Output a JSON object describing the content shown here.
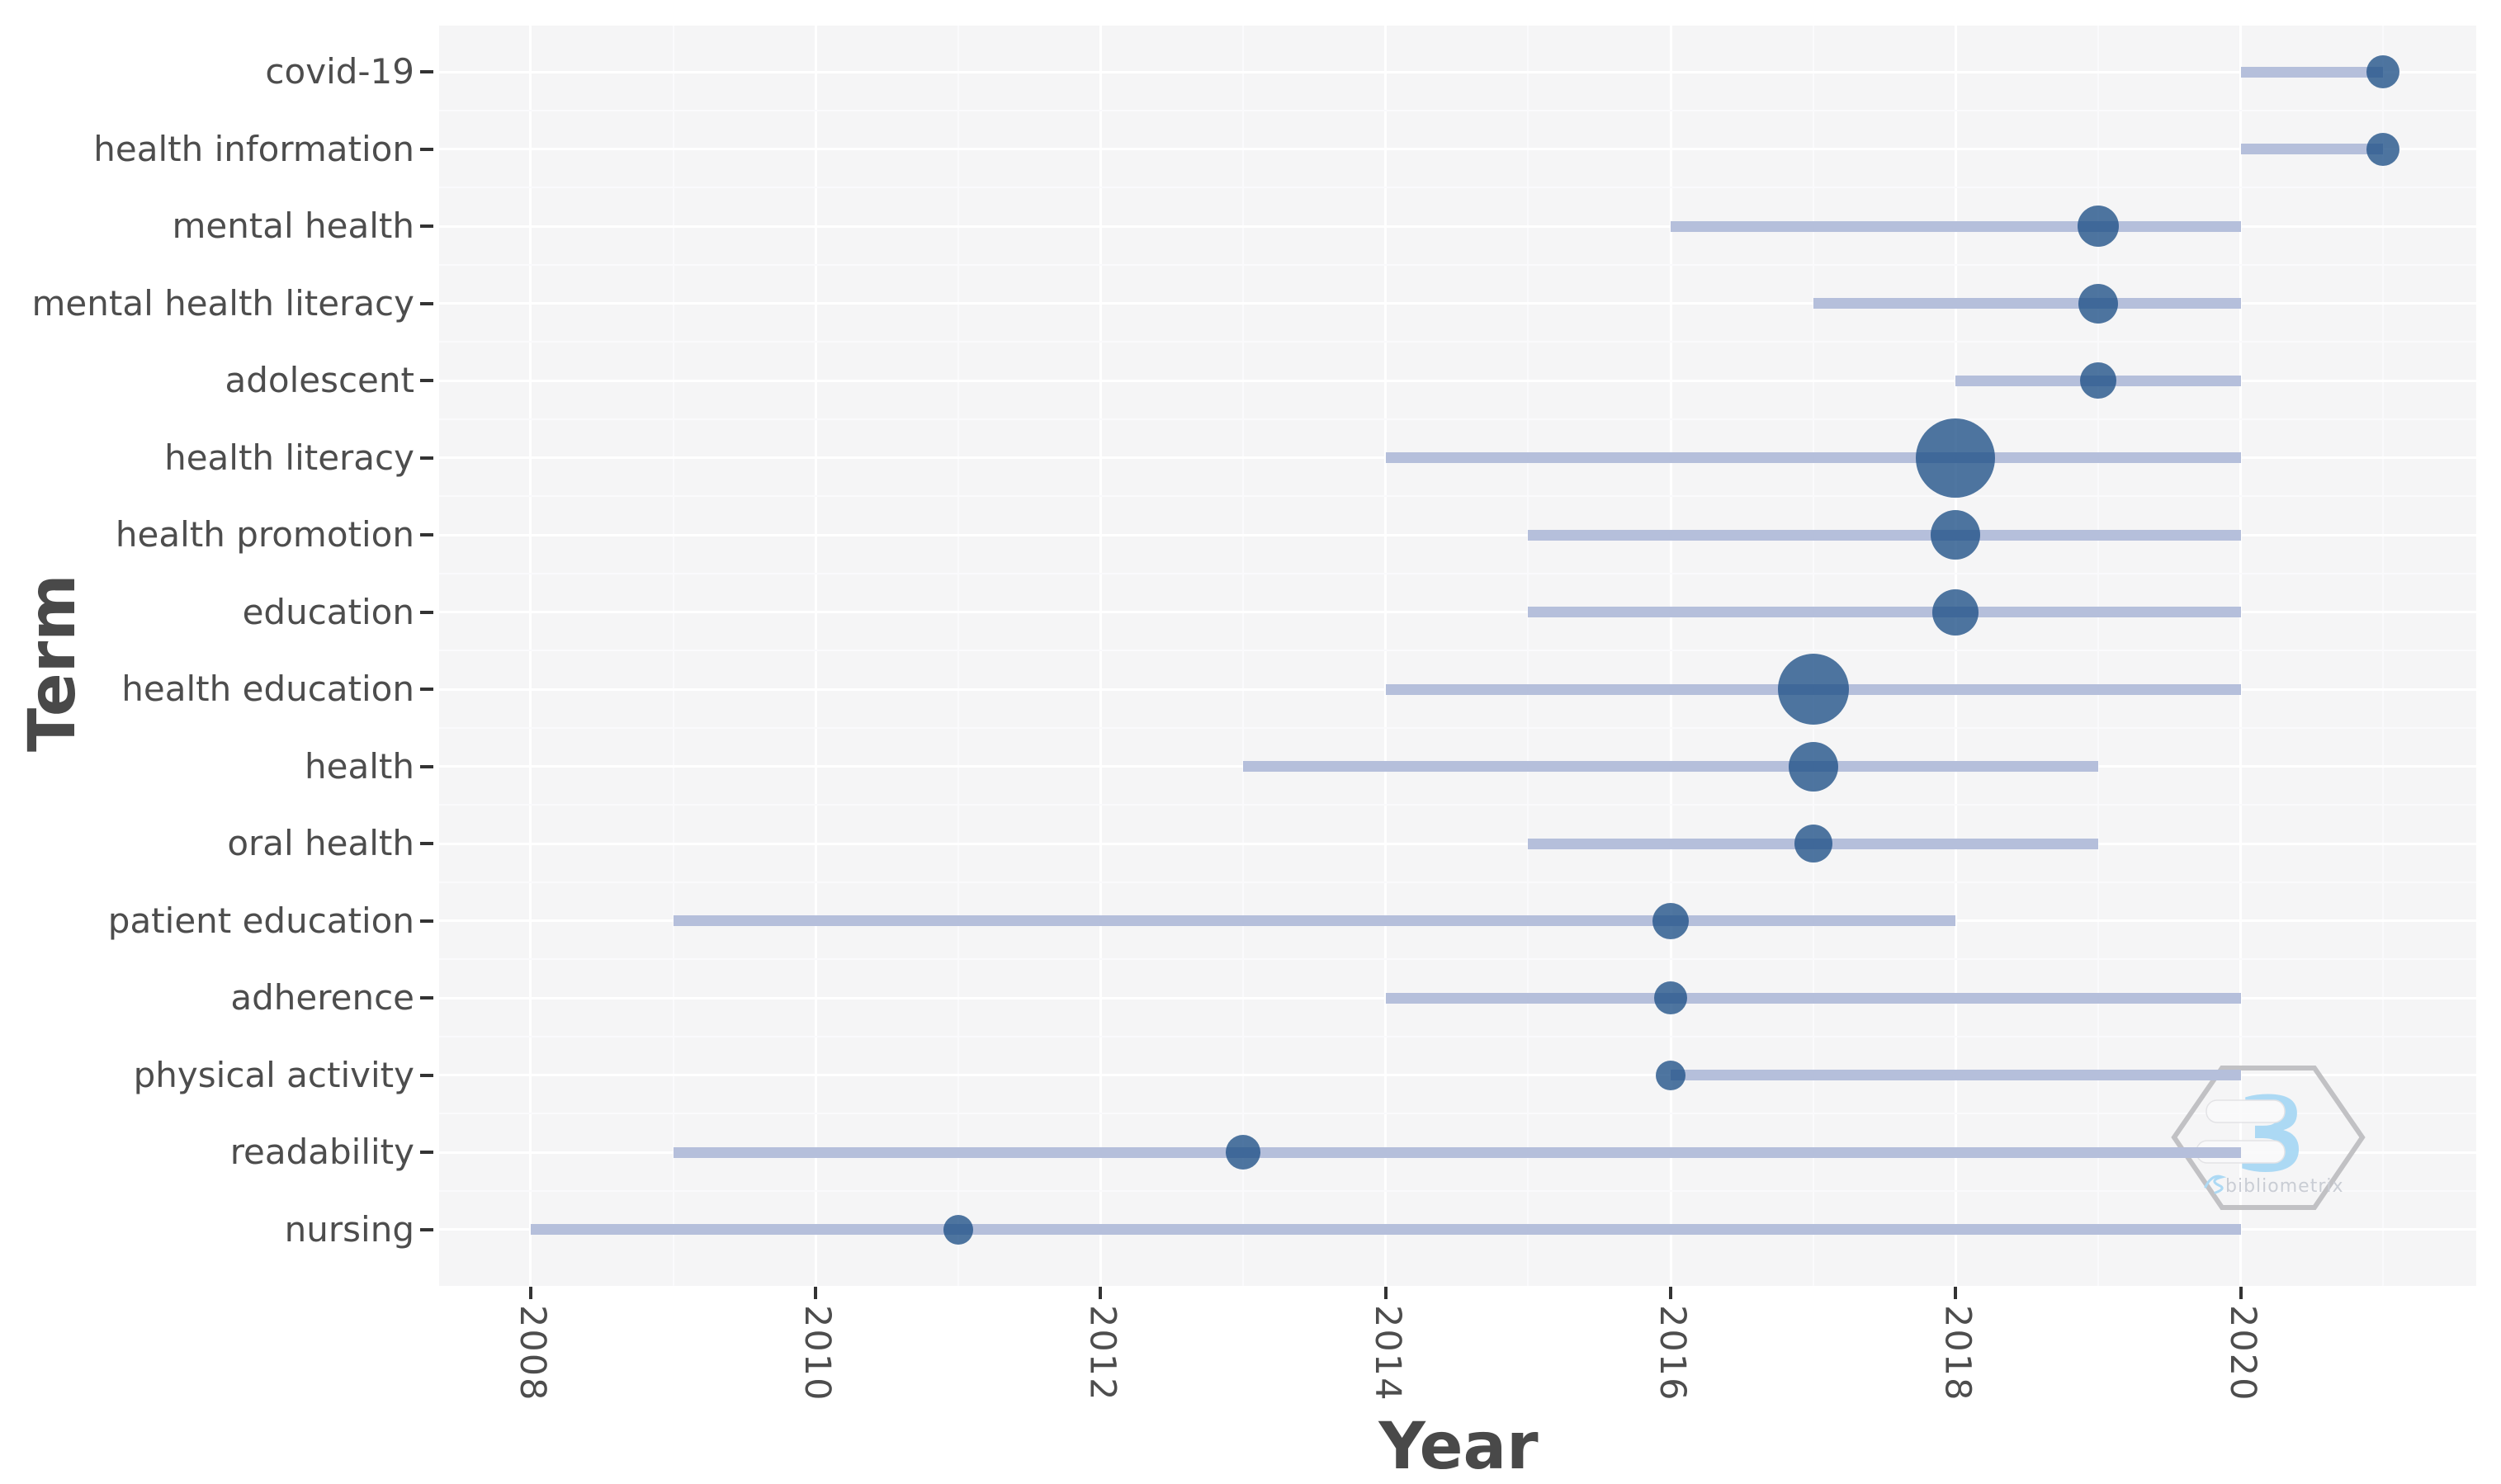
{
  "chart_data": {
    "type": "timeline-bubble",
    "title": "",
    "xlabel": "Year",
    "ylabel": "Term",
    "legend": "none",
    "grid": "major-white-on-gray-panel",
    "x_range": [
      2007.358,
      2021.652
    ],
    "x_ticks": [
      2008,
      2010,
      2012,
      2014,
      2016,
      2018,
      2020
    ],
    "x_minor_ticks": [
      2009,
      2011,
      2013,
      2015,
      2017,
      2019,
      2021
    ],
    "terms": [
      {
        "term": "covid-19",
        "year_start": 2020,
        "year_end": 2021,
        "peak_year": 2021,
        "bubble_r": 20
      },
      {
        "term": "health information",
        "year_start": 2020,
        "year_end": 2021,
        "peak_year": 2021,
        "bubble_r": 20
      },
      {
        "term": "mental health",
        "year_start": 2016,
        "year_end": 2020,
        "peak_year": 2019,
        "bubble_r": 25
      },
      {
        "term": "mental health literacy",
        "year_start": 2017,
        "year_end": 2020,
        "peak_year": 2019,
        "bubble_r": 24
      },
      {
        "term": "adolescent",
        "year_start": 2018,
        "year_end": 2020,
        "peak_year": 2019,
        "bubble_r": 22
      },
      {
        "term": "health literacy",
        "year_start": 2014,
        "year_end": 2020,
        "peak_year": 2018,
        "bubble_r": 48
      },
      {
        "term": "health promotion",
        "year_start": 2015,
        "year_end": 2020,
        "peak_year": 2018,
        "bubble_r": 30
      },
      {
        "term": "education",
        "year_start": 2015,
        "year_end": 2020,
        "peak_year": 2018,
        "bubble_r": 28
      },
      {
        "term": "health education",
        "year_start": 2014,
        "year_end": 2020,
        "peak_year": 2017,
        "bubble_r": 43
      },
      {
        "term": "health",
        "year_start": 2013,
        "year_end": 2019,
        "peak_year": 2017,
        "bubble_r": 30
      },
      {
        "term": "oral health",
        "year_start": 2015,
        "year_end": 2019,
        "peak_year": 2017,
        "bubble_r": 23
      },
      {
        "term": "patient education",
        "year_start": 2009,
        "year_end": 2018,
        "peak_year": 2016,
        "bubble_r": 22
      },
      {
        "term": "adherence",
        "year_start": 2014,
        "year_end": 2020,
        "peak_year": 2016,
        "bubble_r": 20
      },
      {
        "term": "physical activity",
        "year_start": 2016,
        "year_end": 2020,
        "peak_year": 2016,
        "bubble_r": 18
      },
      {
        "term": "readability",
        "year_start": 2009,
        "year_end": 2020,
        "peak_year": 2013,
        "bubble_r": 21
      },
      {
        "term": "nursing",
        "year_start": 2008,
        "year_end": 2020,
        "peak_year": 2011,
        "bubble_r": 18
      }
    ]
  },
  "watermark": {
    "glyph": "3",
    "name": "bibliometrix"
  },
  "colors": {
    "panel_bg": "#f5f5f6",
    "grid_major": "#ffffff",
    "grid_minor": "#fafafc",
    "range_line": "#b5bfdb",
    "bubble": "rgba(30,80,135,0.78)",
    "bubble_solid": "#4e79a7",
    "axis_text": "#4d4d4d",
    "axis_title": "#494949",
    "tick_mark": "#333333",
    "logo_blue": "#a6d7f4",
    "logo_outline": "#bdbdc0",
    "logo_text": "#c6cad2"
  }
}
